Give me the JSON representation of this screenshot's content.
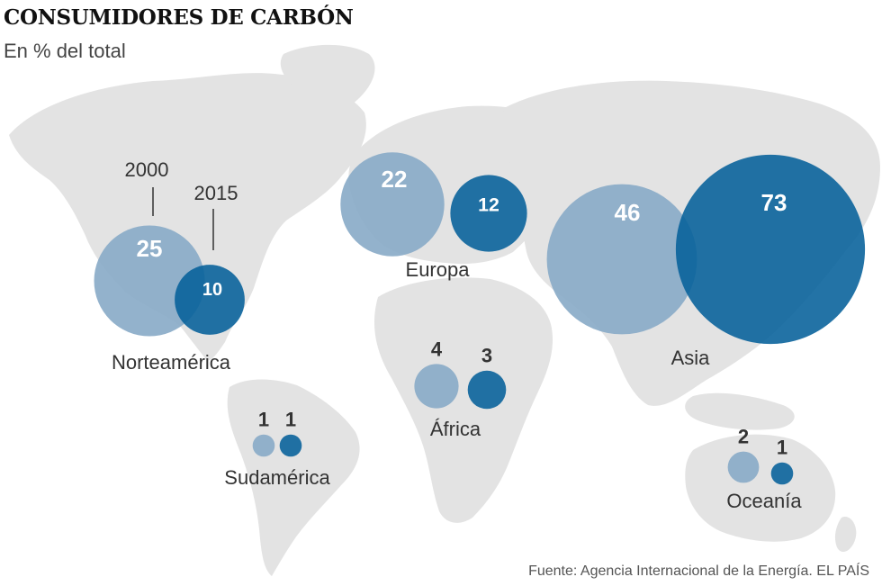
{
  "title": "CONSUMIDORES DE CARBÓN",
  "subtitle": "En % del total",
  "source": "Fuente: Agencia Internacional de la Energía.   EL PAÍS",
  "colors": {
    "map": "#e3e3e3",
    "year_2000": "#8aabc8",
    "year_2015": "#05609a",
    "inside_text": "#ffffff",
    "outside_text": "#333333"
  },
  "chart_data": {
    "type": "bubble-map",
    "series": [
      {
        "name": "2000",
        "color": "#8aabc8"
      },
      {
        "name": "2015",
        "color": "#05609a"
      }
    ],
    "year_labels": [
      "2000",
      "2015"
    ],
    "regions": [
      {
        "name": "Norteamérica",
        "values": [
          25,
          10
        ]
      },
      {
        "name": "Europa",
        "values": [
          22,
          12
        ]
      },
      {
        "name": "Asia",
        "values": [
          46,
          73
        ]
      },
      {
        "name": "África",
        "values": [
          4,
          3
        ]
      },
      {
        "name": "Sudamérica",
        "values": [
          1,
          1
        ]
      },
      {
        "name": "Oceanía",
        "values": [
          2,
          1
        ]
      }
    ]
  }
}
